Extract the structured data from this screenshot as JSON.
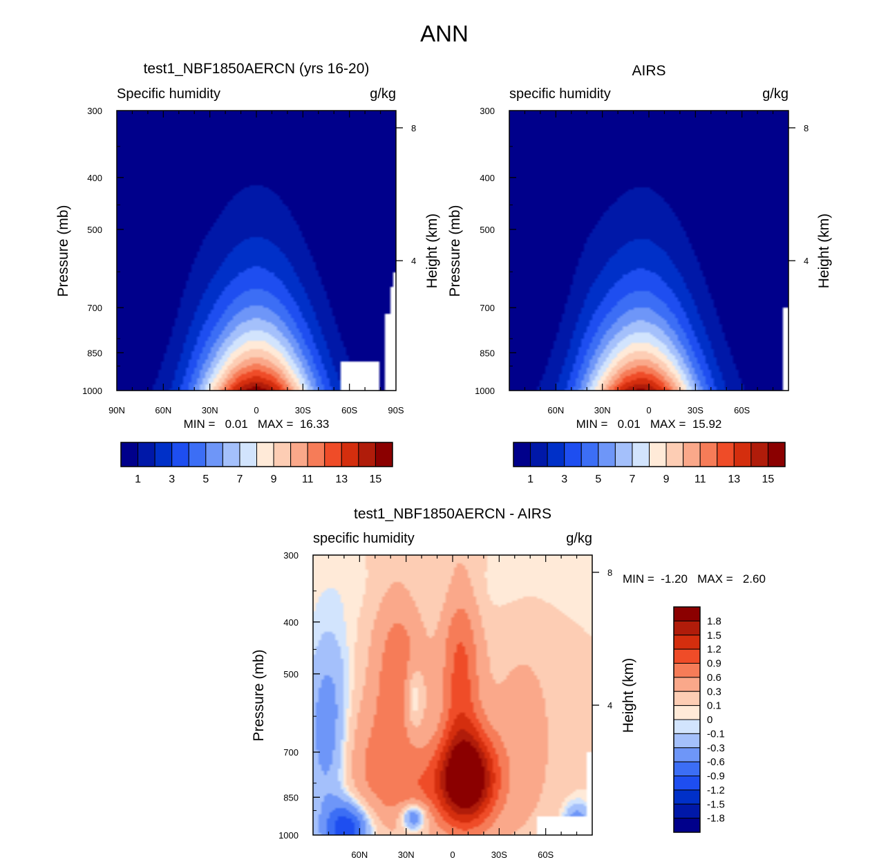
{
  "page": {
    "title": "ANN"
  },
  "chart_data": [
    {
      "type": "heatmap",
      "id": "model",
      "title": "test1_NBF1850AERCN (yrs 16-20)",
      "left_label": "Specific humidity",
      "right_label": "g/kg",
      "xlabel": "",
      "ylabel": "Pressure (mb)",
      "ylabel_right": "Height (km)",
      "x_ticks": [
        "90N",
        "60N",
        "30N",
        "0",
        "30S",
        "60S",
        "90S"
      ],
      "x_tick_lat": [
        90,
        60,
        30,
        0,
        -30,
        -60,
        -90
      ],
      "xlim": [
        90,
        -90
      ],
      "y_ticks": [
        "300",
        "400",
        "500",
        "700",
        "850",
        "1000"
      ],
      "y_tick_p": [
        300,
        400,
        500,
        700,
        850,
        1000
      ],
      "ylim": [
        300,
        1000
      ],
      "height_ticks": [
        "8",
        "4"
      ],
      "height_km": [
        8,
        4
      ],
      "min_max_text": "MIN =   0.01   MAX =  16.33",
      "min": 0.01,
      "max": 16.33,
      "peak_lat": 0,
      "colorbar": {
        "orientation": "horizontal",
        "levels": [
          "1",
          "3",
          "5",
          "7",
          "9",
          "11",
          "13",
          "15"
        ],
        "level_values": [
          1,
          2,
          3,
          4,
          5,
          6,
          7,
          8,
          9,
          10,
          11,
          12,
          13,
          14,
          15
        ],
        "colors": [
          "#00008b",
          "#0018a8",
          "#0030c8",
          "#1e4ef0",
          "#3c6ef5",
          "#6e96f8",
          "#a4c0fb",
          "#d2e4fd",
          "#ffead8",
          "#fdcdb4",
          "#faa88a",
          "#f67c58",
          "#ef4c28",
          "#d42e0e",
          "#b01c0a",
          "#8b0000"
        ]
      }
    },
    {
      "type": "heatmap",
      "id": "obs",
      "title": "AIRS",
      "left_label": "specific humidity",
      "right_label": "g/kg",
      "xlabel": "",
      "ylabel": "Pressure (mb)",
      "ylabel_right": "Height (km)",
      "x_ticks": [
        "60N",
        "30N",
        "0",
        "30S",
        "60S"
      ],
      "x_tick_lat": [
        60,
        30,
        0,
        -30,
        -60
      ],
      "xlim": [
        90,
        -90
      ],
      "y_ticks": [
        "300",
        "400",
        "500",
        "700",
        "850",
        "1000"
      ],
      "y_tick_p": [
        300,
        400,
        500,
        700,
        850,
        1000
      ],
      "ylim": [
        300,
        1000
      ],
      "height_ticks": [
        "8",
        "4"
      ],
      "height_km": [
        8,
        4
      ],
      "min_max_text": "MIN =   0.01   MAX =  15.92",
      "min": 0.01,
      "max": 15.92,
      "peak_lat": 5,
      "colorbar": {
        "orientation": "horizontal",
        "levels": [
          "1",
          "3",
          "5",
          "7",
          "9",
          "11",
          "13",
          "15"
        ],
        "level_values": [
          1,
          2,
          3,
          4,
          5,
          6,
          7,
          8,
          9,
          10,
          11,
          12,
          13,
          14,
          15
        ],
        "colors": [
          "#00008b",
          "#0018a8",
          "#0030c8",
          "#1e4ef0",
          "#3c6ef5",
          "#6e96f8",
          "#a4c0fb",
          "#d2e4fd",
          "#ffead8",
          "#fdcdb4",
          "#faa88a",
          "#f67c58",
          "#ef4c28",
          "#d42e0e",
          "#b01c0a",
          "#8b0000"
        ]
      }
    },
    {
      "type": "heatmap",
      "id": "diff",
      "title": "test1_NBF1850AERCN - AIRS",
      "left_label": "specific humidity",
      "right_label": "g/kg",
      "xlabel": "",
      "ylabel": "Pressure (mb)",
      "ylabel_right": "Height (km)",
      "x_ticks": [
        "60N",
        "30N",
        "0",
        "30S",
        "60S"
      ],
      "x_tick_lat": [
        60,
        30,
        0,
        -30,
        -60
      ],
      "xlim": [
        90,
        -90
      ],
      "y_ticks": [
        "300",
        "400",
        "500",
        "700",
        "850",
        "1000"
      ],
      "y_tick_p": [
        300,
        400,
        500,
        700,
        850,
        1000
      ],
      "ylim": [
        300,
        1000
      ],
      "height_ticks": [
        "8",
        "4"
      ],
      "height_km": [
        8,
        4
      ],
      "min_max_text": "MIN =  -1.20   MAX =   2.60",
      "min": -1.2,
      "max": 2.6,
      "colorbar": {
        "orientation": "vertical",
        "levels": [
          "1.8",
          "1.5",
          "1.2",
          "0.9",
          "0.6",
          "0.3",
          "0.1",
          "0",
          "-0.1",
          "-0.3",
          "-0.6",
          "-0.9",
          "-1.2",
          "-1.5",
          "-1.8"
        ],
        "colors": [
          "#8b0000",
          "#b01c0a",
          "#d42e0e",
          "#ef4c28",
          "#f67c58",
          "#faa88a",
          "#fdcdb4",
          "#ffead8",
          "#d2e4fd",
          "#a4c0fb",
          "#6e96f8",
          "#3c6ef5",
          "#1e4ef0",
          "#0030c8",
          "#0018a8",
          "#00008b"
        ]
      }
    }
  ]
}
